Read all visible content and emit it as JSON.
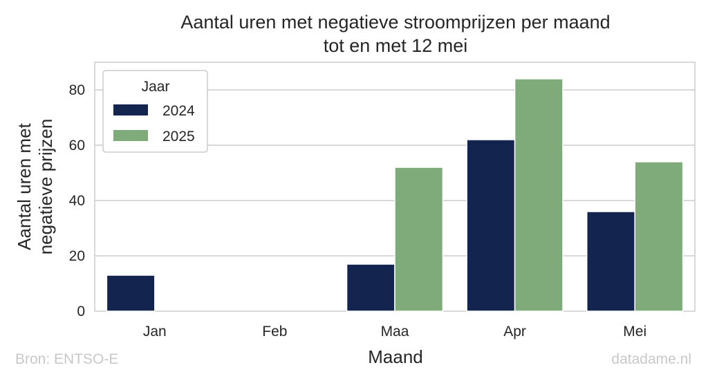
{
  "chart_data": {
    "type": "bar",
    "title": [
      "Aantal uren met negatieve stroomprijzen per maand",
      "tot en met 12 mei"
    ],
    "xlabel": "Maand",
    "ylabel": [
      "Aantal uren met",
      "negatieve prijzen"
    ],
    "categories": [
      "Jan",
      "Feb",
      "Maa",
      "Apr",
      "Mei"
    ],
    "series": [
      {
        "name": "2024",
        "color": "#13254f",
        "values": [
          13,
          0,
          17,
          62,
          36
        ]
      },
      {
        "name": "2025",
        "color": "#7fab7a",
        "values": [
          0,
          0,
          52,
          84,
          54
        ]
      }
    ],
    "ylim": [
      0,
      90
    ],
    "yticks": [
      0,
      20,
      40,
      60,
      80
    ],
    "grid": true,
    "legend": {
      "title": "Jaar",
      "placement": "top-left"
    }
  },
  "footer": {
    "source": "Bron: ENTSO-E",
    "brand": "datadame.nl"
  }
}
